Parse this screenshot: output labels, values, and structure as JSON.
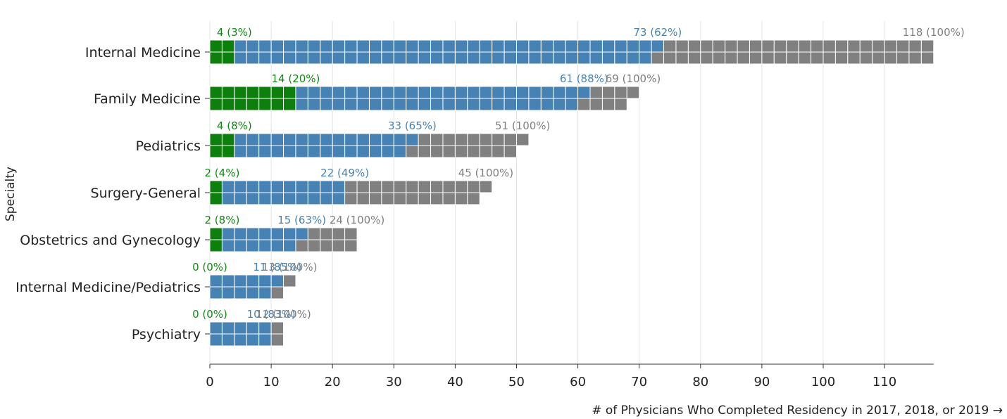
{
  "chart_data": {
    "type": "bar",
    "variant": "waffle-bar",
    "xlabel": "# of Physicians Who Completed Residency in 2017, 2018, or 2019 →",
    "ylabel": "Specialty",
    "xlim": [
      0,
      118
    ],
    "xticks": [
      0,
      10,
      20,
      30,
      40,
      50,
      60,
      70,
      80,
      90,
      100,
      110
    ],
    "grid": true,
    "colors": {
      "green": "#0c7f0c",
      "blue": "#4682b4",
      "gray": "#808080",
      "green_text": "#118a11",
      "blue_text": "#4682b4",
      "gray_text": "#7f7f7f"
    },
    "categories": [
      "Internal Medicine",
      "Family Medicine",
      "Pediatrics",
      "Surgery-General",
      "Obstetrics and Gynecology",
      "Internal Medicine/Pediatrics",
      "Psychiatry"
    ],
    "series": [
      {
        "name": "green",
        "values": [
          4,
          14,
          4,
          2,
          2,
          0,
          0
        ],
        "labels": [
          "4 (3%)",
          "14 (20%)",
          "4 (8%)",
          "2 (4%)",
          "2 (8%)",
          "0 (0%)",
          "0 (0%)"
        ]
      },
      {
        "name": "blue",
        "values": [
          73,
          61,
          33,
          22,
          15,
          11,
          10
        ],
        "labels": [
          "73 (62%)",
          "61 (88%)",
          "33 (65%)",
          "22 (49%)",
          "15 (63%)",
          "11 (85%)",
          "10 (83%)"
        ]
      },
      {
        "name": "total",
        "values": [
          118,
          69,
          51,
          45,
          24,
          13,
          12
        ],
        "labels": [
          "118 (100%)",
          "69 (100%)",
          "51 (100%)",
          "45 (100%)",
          "24 (100%)",
          "13 (100%)",
          "12 (100%)"
        ]
      }
    ]
  }
}
